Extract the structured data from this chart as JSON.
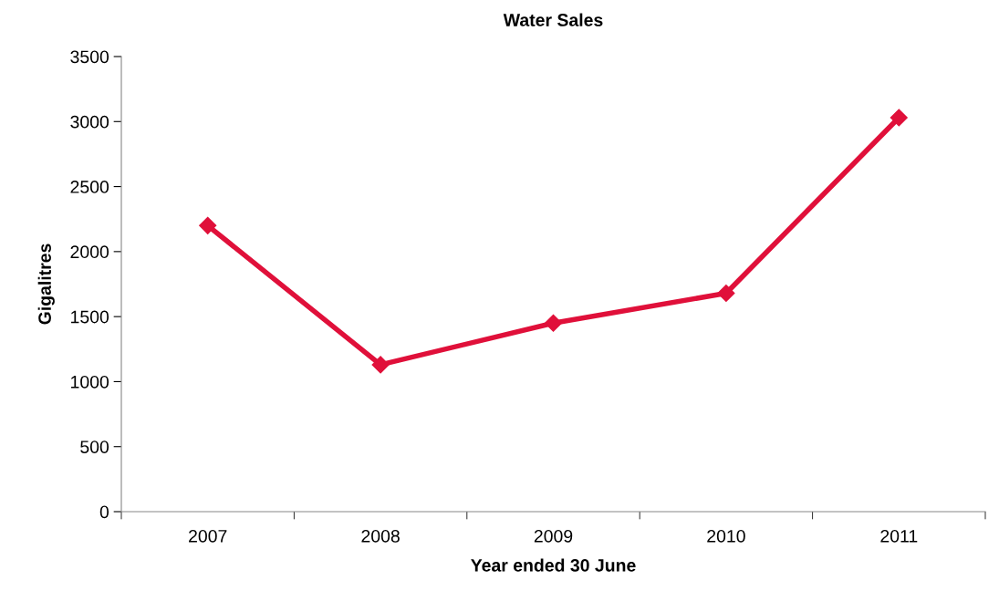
{
  "chart_data": {
    "type": "line",
    "title": "Water Sales",
    "xlabel": "Year ended 30 June",
    "ylabel": "Gigalitres",
    "categories": [
      "2007",
      "2008",
      "2009",
      "2010",
      "2011"
    ],
    "series": [
      {
        "color": "#e0103a",
        "values": [
          2200,
          1130,
          1450,
          1680,
          3030
        ]
      }
    ],
    "ylim": [
      0,
      3500
    ],
    "yticks": [
      0,
      500,
      1000,
      1500,
      2000,
      2500,
      3000,
      3500
    ],
    "grid": false,
    "marker": "diamond",
    "line_style": "solid"
  }
}
